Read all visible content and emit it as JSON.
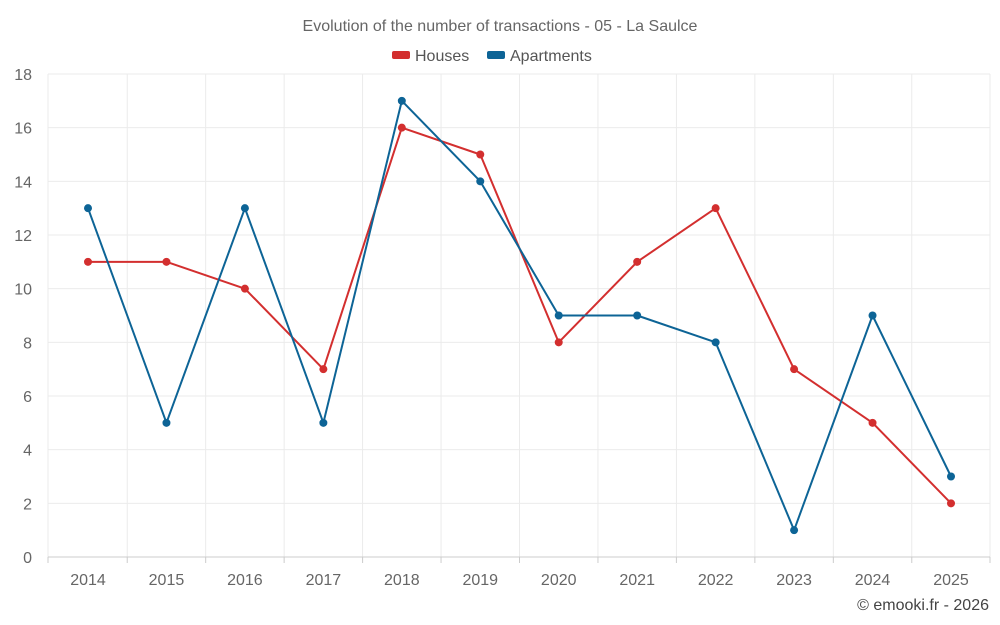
{
  "chart_data": {
    "type": "line",
    "title": "Evolution of the number of transactions - 05 - La Saulce",
    "categories": [
      "2014",
      "2015",
      "2016",
      "2017",
      "2018",
      "2019",
      "2020",
      "2021",
      "2022",
      "2023",
      "2024",
      "2025"
    ],
    "series": [
      {
        "name": "Houses",
        "color": "#d32f2f",
        "values": [
          11,
          11,
          10,
          7,
          16,
          15,
          8,
          11,
          13,
          7,
          5,
          2
        ]
      },
      {
        "name": "Apartments",
        "color": "#0d6496",
        "values": [
          13,
          5,
          13,
          5,
          17,
          14,
          9,
          9,
          8,
          1,
          9,
          3
        ]
      }
    ],
    "ylim": [
      0,
      18
    ],
    "yticks": [
      0,
      2,
      4,
      6,
      8,
      10,
      12,
      14,
      16,
      18
    ],
    "grid": true,
    "legend": "top-center",
    "credit": "© emooki.fr - 2026"
  }
}
